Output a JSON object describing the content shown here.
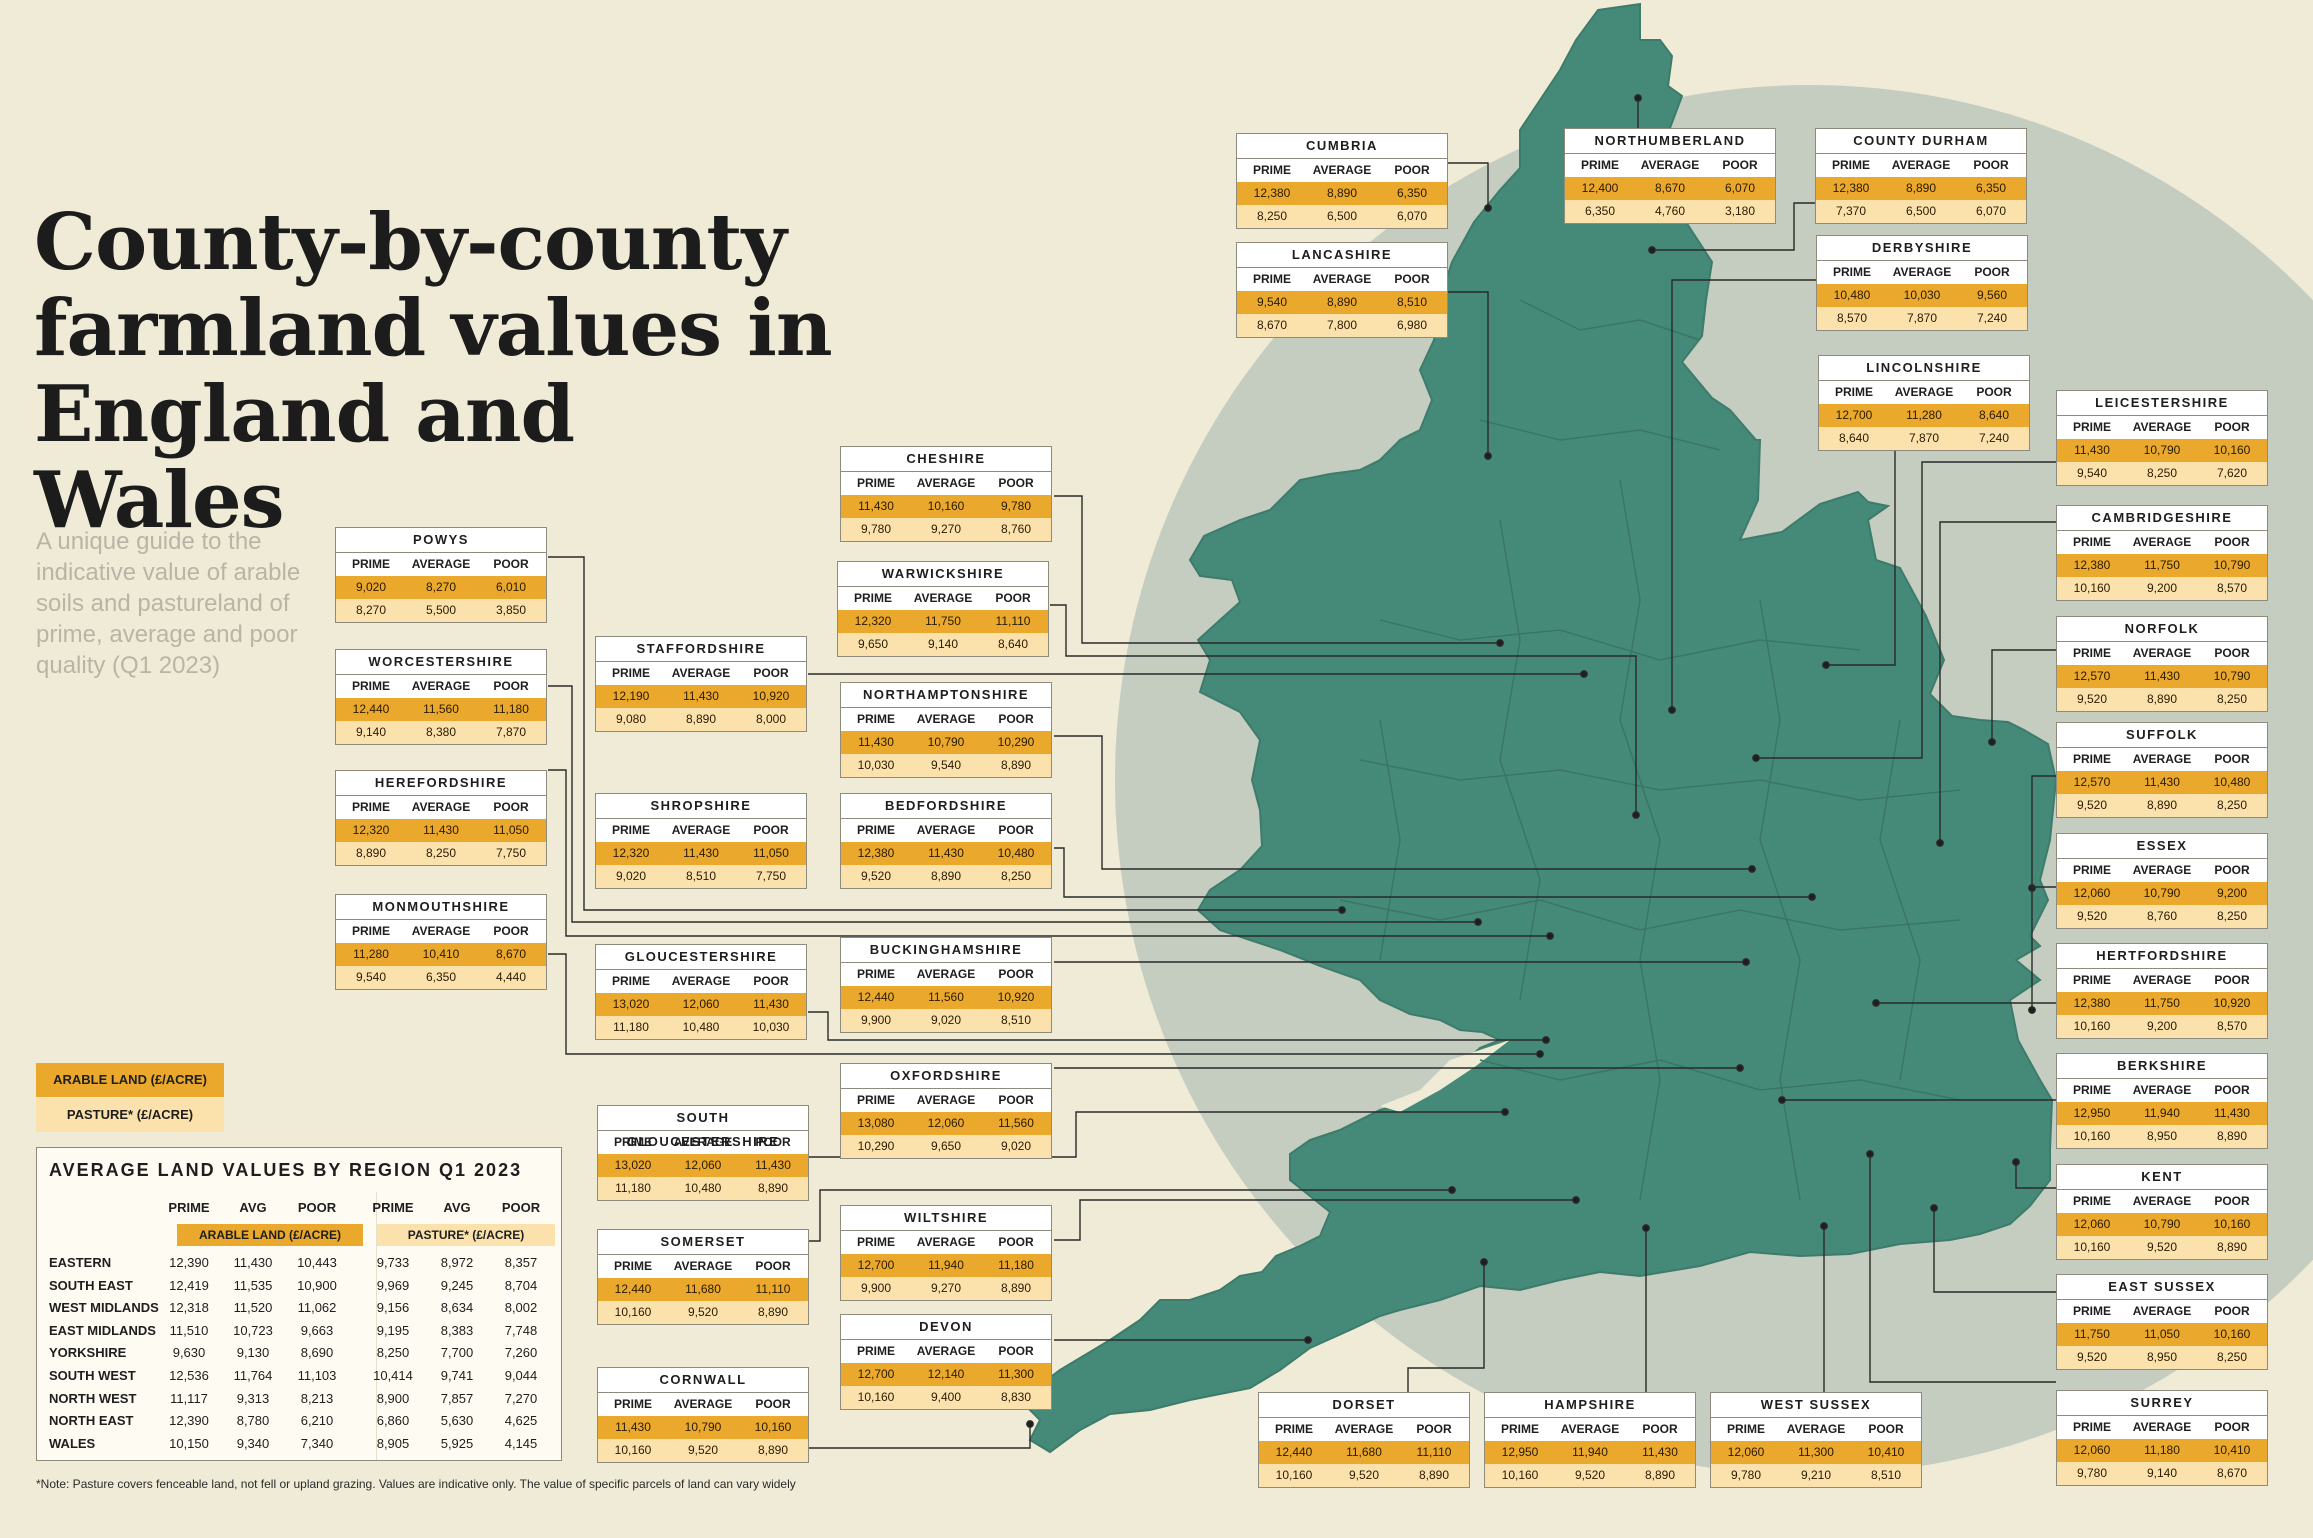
{
  "title": {
    "line1": "County-by-county",
    "line2": "farmland values in",
    "line3": "England and Wales"
  },
  "subtitle": "A unique guide to the indicative value of arable soils and pastureland of prime, average and poor quality (Q1 2023)",
  "colors": {
    "background": "#efebd6",
    "land": "#458a78",
    "circle": "#c4cdbf",
    "arable": "#eaa92d",
    "pasture": "#fbe2ad"
  },
  "column_headers": {
    "prime": "PRIME",
    "average": "AVERAGE",
    "poor": "POOR"
  },
  "counties": [
    {
      "name": "CUMBRIA",
      "arable": [
        "12,380",
        "8,890",
        "6,350"
      ],
      "pasture": [
        "8,250",
        "6,500",
        "6,070"
      ]
    },
    {
      "name": "NORTHUMBERLAND",
      "arable": [
        "12,400",
        "8,670",
        "6,070"
      ],
      "pasture": [
        "6,350",
        "4,760",
        "3,180"
      ]
    },
    {
      "name": "COUNTY DURHAM",
      "arable": [
        "12,380",
        "8,890",
        "6,350"
      ],
      "pasture": [
        "7,370",
        "6,500",
        "6,070"
      ]
    },
    {
      "name": "LANCASHIRE",
      "arable": [
        "9,540",
        "8,890",
        "8,510"
      ],
      "pasture": [
        "8,670",
        "7,800",
        "6,980"
      ]
    },
    {
      "name": "DERBYSHIRE",
      "arable": [
        "10,480",
        "10,030",
        "9,560"
      ],
      "pasture": [
        "8,570",
        "7,870",
        "7,240"
      ]
    },
    {
      "name": "LINCOLNSHIRE",
      "arable": [
        "12,700",
        "11,280",
        "8,640"
      ],
      "pasture": [
        "8,640",
        "7,870",
        "7,240"
      ]
    },
    {
      "name": "LEICESTERSHIRE",
      "arable": [
        "11,430",
        "10,790",
        "10,160"
      ],
      "pasture": [
        "9,540",
        "8,250",
        "7,620"
      ]
    },
    {
      "name": "CHESHIRE",
      "arable": [
        "11,430",
        "10,160",
        "9,780"
      ],
      "pasture": [
        "9,780",
        "9,270",
        "8,760"
      ]
    },
    {
      "name": "POWYS",
      "arable": [
        "9,020",
        "8,270",
        "6,010"
      ],
      "pasture": [
        "8,270",
        "5,500",
        "3,850"
      ]
    },
    {
      "name": "CAMBRIDGESHIRE",
      "arable": [
        "12,380",
        "11,750",
        "10,790"
      ],
      "pasture": [
        "10,160",
        "9,200",
        "8,570"
      ]
    },
    {
      "name": "WARWICKSHIRE",
      "arable": [
        "12,320",
        "11,750",
        "11,110"
      ],
      "pasture": [
        "9,650",
        "9,140",
        "8,640"
      ]
    },
    {
      "name": "STAFFORDSHIRE",
      "arable": [
        "12,190",
        "11,430",
        "10,920"
      ],
      "pasture": [
        "9,080",
        "8,890",
        "8,000"
      ]
    },
    {
      "name": "WORCESTERSHIRE",
      "arable": [
        "12,440",
        "11,560",
        "11,180"
      ],
      "pasture": [
        "9,140",
        "8,380",
        "7,870"
      ]
    },
    {
      "name": "NORFOLK",
      "arable": [
        "12,570",
        "11,430",
        "10,790"
      ],
      "pasture": [
        "9,520",
        "8,890",
        "8,250"
      ]
    },
    {
      "name": "NORTHAMPTONSHIRE",
      "arable": [
        "11,430",
        "10,790",
        "10,290"
      ],
      "pasture": [
        "10,030",
        "9,540",
        "8,890"
      ]
    },
    {
      "name": "SUFFOLK",
      "arable": [
        "12,570",
        "11,430",
        "10,480"
      ],
      "pasture": [
        "9,520",
        "8,890",
        "8,250"
      ]
    },
    {
      "name": "HEREFORDSHIRE",
      "arable": [
        "12,320",
        "11,430",
        "11,050"
      ],
      "pasture": [
        "8,890",
        "8,250",
        "7,750"
      ]
    },
    {
      "name": "SHROPSHIRE",
      "arable": [
        "12,320",
        "11,430",
        "11,050"
      ],
      "pasture": [
        "9,020",
        "8,510",
        "7,750"
      ]
    },
    {
      "name": "BEDFORDSHIRE",
      "arable": [
        "12,380",
        "11,430",
        "10,480"
      ],
      "pasture": [
        "9,520",
        "8,890",
        "8,250"
      ]
    },
    {
      "name": "ESSEX",
      "arable": [
        "12,060",
        "10,790",
        "9,200"
      ],
      "pasture": [
        "9,520",
        "8,760",
        "8,250"
      ]
    },
    {
      "name": "MONMOUTHSHIRE",
      "arable": [
        "11,280",
        "10,410",
        "8,670"
      ],
      "pasture": [
        "9,540",
        "6,350",
        "4,440"
      ]
    },
    {
      "name": "BUCKINGHAMSHIRE",
      "arable": [
        "12,440",
        "11,560",
        "10,920"
      ],
      "pasture": [
        "9,900",
        "9,020",
        "8,510"
      ]
    },
    {
      "name": "GLOUCESTERSHIRE",
      "arable": [
        "13,020",
        "12,060",
        "11,430"
      ],
      "pasture": [
        "11,180",
        "10,480",
        "10,030"
      ]
    },
    {
      "name": "HERTFORDSHIRE",
      "arable": [
        "12,380",
        "11,750",
        "10,920"
      ],
      "pasture": [
        "10,160",
        "9,200",
        "8,570"
      ]
    },
    {
      "name": "OXFORDSHIRE",
      "arable": [
        "13,080",
        "12,060",
        "11,560"
      ],
      "pasture": [
        "10,290",
        "9,650",
        "9,020"
      ]
    },
    {
      "name": "BERKSHIRE",
      "arable": [
        "12,950",
        "11,940",
        "11,430"
      ],
      "pasture": [
        "10,160",
        "8,950",
        "8,890"
      ]
    },
    {
      "name": "SOUTH GLOUCESTERSHIRE",
      "arable": [
        "13,020",
        "12,060",
        "11,430"
      ],
      "pasture": [
        "11,180",
        "10,480",
        "8,890"
      ]
    },
    {
      "name": "KENT",
      "arable": [
        "12,060",
        "10,790",
        "10,160"
      ],
      "pasture": [
        "10,160",
        "9,520",
        "8,890"
      ]
    },
    {
      "name": "WILTSHIRE",
      "arable": [
        "12,700",
        "11,940",
        "11,180"
      ],
      "pasture": [
        "9,900",
        "9,270",
        "8,890"
      ]
    },
    {
      "name": "SOMERSET",
      "arable": [
        "12,440",
        "11,680",
        "11,110"
      ],
      "pasture": [
        "10,160",
        "9,520",
        "8,890"
      ]
    },
    {
      "name": "EAST SUSSEX",
      "arable": [
        "11,750",
        "11,050",
        "10,160"
      ],
      "pasture": [
        "9,520",
        "8,950",
        "8,250"
      ]
    },
    {
      "name": "DEVON",
      "arable": [
        "12,700",
        "12,140",
        "11,300"
      ],
      "pasture": [
        "10,160",
        "9,400",
        "8,830"
      ]
    },
    {
      "name": "CORNWALL",
      "arable": [
        "11,430",
        "10,790",
        "10,160"
      ],
      "pasture": [
        "10,160",
        "9,520",
        "8,890"
      ]
    },
    {
      "name": "DORSET",
      "arable": [
        "12,440",
        "11,680",
        "11,110"
      ],
      "pasture": [
        "10,160",
        "9,520",
        "8,890"
      ]
    },
    {
      "name": "HAMPSHIRE",
      "arable": [
        "12,950",
        "11,940",
        "11,430"
      ],
      "pasture": [
        "10,160",
        "9,520",
        "8,890"
      ]
    },
    {
      "name": "WEST SUSSEX",
      "arable": [
        "12,060",
        "11,300",
        "10,410"
      ],
      "pasture": [
        "9,780",
        "9,210",
        "8,510"
      ]
    },
    {
      "name": "SURREY",
      "arable": [
        "12,060",
        "11,180",
        "10,410"
      ],
      "pasture": [
        "9,780",
        "9,140",
        "8,670"
      ]
    }
  ],
  "legend": {
    "arable": "ARABLE LAND (£/ACRE)",
    "pasture": "PASTURE* (£/ACRE)"
  },
  "regional": {
    "title": "AVERAGE LAND VALUES BY REGION Q1 2023",
    "headers": [
      "PRIME",
      "AVG",
      "POOR",
      "PRIME",
      "AVG",
      "POOR"
    ],
    "arable_label": "ARABLE LAND (£/ACRE)",
    "pasture_label": "PASTURE* (£/ACRE)",
    "rows": [
      {
        "region": "EASTERN",
        "values": [
          "12,390",
          "11,430",
          "10,443",
          "9,733",
          "8,972",
          "8,357"
        ]
      },
      {
        "region": "SOUTH EAST",
        "values": [
          "12,419",
          "11,535",
          "10,900",
          "9,969",
          "9,245",
          "8,704"
        ]
      },
      {
        "region": "WEST MIDLANDS",
        "values": [
          "12,318",
          "11,520",
          "11,062",
          "9,156",
          "8,634",
          "8,002"
        ]
      },
      {
        "region": "EAST MIDLANDS",
        "values": [
          "11,510",
          "10,723",
          "9,663",
          "9,195",
          "8,383",
          "7,748"
        ]
      },
      {
        "region": "YORKSHIRE",
        "values": [
          "9,630",
          "9,130",
          "8,690",
          "8,250",
          "7,700",
          "7,260"
        ]
      },
      {
        "region": "SOUTH WEST",
        "values": [
          "12,536",
          "11,764",
          "11,103",
          "10,414",
          "9,741",
          "9,044"
        ]
      },
      {
        "region": "NORTH WEST",
        "values": [
          "11,117",
          "9,313",
          "8,213",
          "8,900",
          "7,857",
          "7,270"
        ]
      },
      {
        "region": "NORTH EAST",
        "values": [
          "12,390",
          "8,780",
          "6,210",
          "6,860",
          "5,630",
          "4,625"
        ]
      },
      {
        "region": "WALES",
        "values": [
          "10,150",
          "9,340",
          "7,340",
          "8,905",
          "5,925",
          "4,145"
        ]
      }
    ]
  },
  "note": "*Note: Pasture covers fenceable land, not fell or upland grazing. Values are indicative only. The value of specific parcels of land can vary widely"
}
